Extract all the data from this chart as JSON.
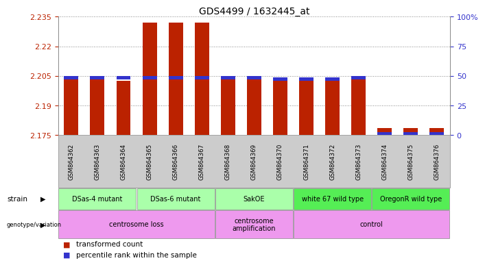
{
  "title": "GDS4499 / 1632445_at",
  "samples": [
    "GSM864362",
    "GSM864363",
    "GSM864364",
    "GSM864365",
    "GSM864366",
    "GSM864367",
    "GSM864368",
    "GSM864369",
    "GSM864370",
    "GSM864371",
    "GSM864372",
    "GSM864373",
    "GSM864374",
    "GSM864375",
    "GSM864376"
  ],
  "red_values": [
    2.2035,
    2.2035,
    2.2025,
    2.232,
    2.232,
    2.232,
    2.2035,
    2.2035,
    2.2025,
    2.2035,
    2.2025,
    2.2035,
    2.1785,
    2.1785,
    2.1785
  ],
  "blue_values": [
    2.204,
    2.204,
    2.204,
    2.204,
    2.204,
    2.204,
    2.204,
    2.204,
    2.2035,
    2.2035,
    2.2035,
    2.204,
    2.1755,
    2.1755,
    2.1755
  ],
  "y_min": 2.175,
  "y_max": 2.235,
  "y_ticks": [
    2.175,
    2.19,
    2.205,
    2.22,
    2.235
  ],
  "y_tick_labels": [
    "2.175",
    "2.19",
    "2.205",
    "2.22",
    "2.235"
  ],
  "right_y_ticks": [
    2.175,
    2.19,
    2.205,
    2.22,
    2.235
  ],
  "right_y_labels": [
    "0",
    "25",
    "50",
    "75",
    "100%"
  ],
  "red_color": "#bb2200",
  "blue_color": "#3333cc",
  "strain_data": [
    {
      "text": "DSas-4 mutant",
      "start": 0,
      "end": 2,
      "color": "#aaffaa"
    },
    {
      "text": "DSas-6 mutant",
      "start": 3,
      "end": 5,
      "color": "#aaffaa"
    },
    {
      "text": "SakOE",
      "start": 6,
      "end": 8,
      "color": "#aaffaa"
    },
    {
      "text": "white 67 wild type",
      "start": 9,
      "end": 11,
      "color": "#55ee55"
    },
    {
      "text": "OregonR wild type",
      "start": 12,
      "end": 14,
      "color": "#55ee55"
    }
  ],
  "geno_data": [
    {
      "text": "centrosome loss",
      "start": 0,
      "end": 5,
      "color": "#ee99ee"
    },
    {
      "text": "centrosome\namplification",
      "start": 6,
      "end": 8,
      "color": "#ee99ee"
    },
    {
      "text": "control",
      "start": 9,
      "end": 14,
      "color": "#ee99ee"
    }
  ],
  "legend": [
    {
      "color": "#bb2200",
      "label": "transformed count"
    },
    {
      "color": "#3333cc",
      "label": "percentile rank within the sample"
    }
  ]
}
